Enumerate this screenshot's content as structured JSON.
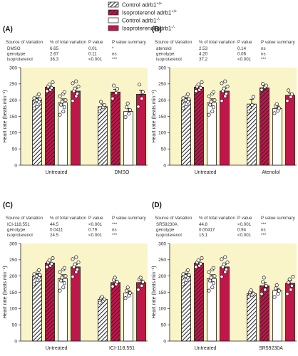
{
  "legend": {
    "items": [
      {
        "main": "Control adrb1",
        "sup": "+/+",
        "style": "hatch-white"
      },
      {
        "main": "Isoproterenol adrb1",
        "sup": "+/+",
        "style": "hatch-red"
      },
      {
        "main": "Control adrb1",
        "sup": "-/-",
        "style": "white"
      },
      {
        "main": "Isoproterenol adrb1",
        "sup": "-/-",
        "style": "red"
      }
    ]
  },
  "colors": {
    "plot_background": "#faf5c8",
    "red": "#c0174b",
    "dark_red": "#8e1035",
    "bar_outline": "#1a1a1a",
    "point_fill": "#ffffff"
  },
  "stats_headers": [
    "Source of Variation",
    "% of total variation",
    "P value",
    "P value summary"
  ],
  "chart_data": [
    {
      "panel_label": "(A)",
      "type": "bar",
      "categories": [
        "Untreated",
        "DMSO"
      ],
      "ylabel": "Heart rate (beats min⁻¹)",
      "ylim": [
        0,
        300
      ],
      "yticks": [
        0,
        50,
        100,
        150,
        200,
        250,
        300
      ],
      "stats": [
        [
          "DMSO",
          "6.65",
          "0.01",
          "*"
        ],
        [
          "genotype",
          "2.67",
          "0.11",
          "ns"
        ],
        [
          "isoproterenol",
          "36.3",
          "<0.001",
          "***"
        ]
      ],
      "series": [
        {
          "name": "Control adrb1+/+",
          "values": [
            200,
            180
          ],
          "sem": [
            6,
            8
          ],
          "points": [
            [
              175,
              188,
              195,
              198,
              200,
              203,
              206,
              212,
              218
            ],
            [
              165,
              178,
              185,
              195
            ]
          ]
        },
        {
          "name": "Isoproterenol adrb1+/+",
          "values": [
            240,
            225
          ],
          "sem": [
            7,
            8
          ],
          "points": [
            [
              228,
              232,
              238,
              242,
              248,
              255
            ],
            [
              205,
              222,
              235,
              245
            ]
          ]
        },
        {
          "name": "Control adrb1-/-",
          "values": [
            192,
            165
          ],
          "sem": [
            12,
            9
          ],
          "points": [
            [
              155,
              165,
              178,
              186,
              195,
              200,
              212,
              220,
              225
            ],
            [
              148,
              158,
              170,
              178,
              190
            ]
          ]
        },
        {
          "name": "Isoproterenol adrb1-/-",
          "values": [
            228,
            218
          ],
          "sem": [
            8,
            12
          ],
          "points": [
            [
              198,
              212,
              220,
              228,
              236,
              242,
              252,
              258
            ],
            [
              180,
              205,
              225,
              248
            ]
          ]
        }
      ]
    },
    {
      "panel_label": "(B)",
      "type": "bar",
      "categories": [
        "Untreated",
        "Atenolol"
      ],
      "ylabel": "Heart rate (beats min⁻¹)",
      "ylim": [
        0,
        300
      ],
      "yticks": [
        0,
        50,
        100,
        150,
        200,
        250,
        300
      ],
      "stats": [
        [
          "atenolol",
          "2.53",
          "0.14",
          "ns"
        ],
        [
          "genotype",
          "4.20",
          "0.06",
          "ns"
        ],
        [
          "isoproterenol",
          "37.2",
          "<0.001",
          "***"
        ]
      ],
      "series": [
        {
          "name": "Control adrb1+/+",
          "values": [
            200,
            188
          ],
          "sem": [
            6,
            15
          ],
          "points": [
            [
              175,
              188,
              195,
              198,
              200,
              203,
              206,
              212,
              218
            ],
            [
              165,
              185,
              210
            ]
          ]
        },
        {
          "name": "Isoproterenol adrb1+/+",
          "values": [
            240,
            238
          ],
          "sem": [
            7,
            6
          ],
          "points": [
            [
              228,
              232,
              238,
              242,
              248,
              255
            ],
            [
              232,
              240,
              245,
              250
            ]
          ]
        },
        {
          "name": "Control adrb1-/-",
          "values": [
            192,
            174
          ],
          "sem": [
            12,
            8
          ],
          "points": [
            [
              155,
              165,
              178,
              186,
              195,
              200,
              212,
              220,
              225
            ],
            [
              160,
              168,
              175,
              182,
              188
            ]
          ]
        },
        {
          "name": "Isoproterenol adrb1-/-",
          "values": [
            228,
            215
          ],
          "sem": [
            8,
            7
          ],
          "points": [
            [
              198,
              212,
              220,
              228,
              236,
              242,
              252,
              258
            ],
            [
              198,
              210,
              218,
              230
            ]
          ]
        }
      ]
    },
    {
      "panel_label": "(C)",
      "type": "bar",
      "categories": [
        "Untreated",
        "ICI-118,551"
      ],
      "ylabel": "Heart rate (beats min⁻¹)",
      "ylim": [
        0,
        300
      ],
      "yticks": [
        0,
        50,
        100,
        150,
        200,
        250,
        300
      ],
      "stats": [
        [
          "ICI-118,551",
          "44.5",
          "<0.001",
          "***"
        ],
        [
          "genotype",
          "0.0411",
          "0.79",
          "ns"
        ],
        [
          "isoproterenol",
          "24.5",
          "<0.001",
          "***"
        ]
      ],
      "series": [
        {
          "name": "Control adrb1+/+",
          "values": [
            200,
            128
          ],
          "sem": [
            6,
            4
          ],
          "points": [
            [
              175,
              188,
              195,
              198,
              200,
              203,
              206,
              212,
              218
            ],
            [
              118,
              124,
              128,
              132,
              136
            ]
          ]
        },
        {
          "name": "Isoproterenol adrb1+/+",
          "values": [
            240,
            180
          ],
          "sem": [
            7,
            7
          ],
          "points": [
            [
              228,
              232,
              238,
              242,
              248,
              255
            ],
            [
              168,
              175,
              182,
              188,
              195
            ]
          ]
        },
        {
          "name": "Control adrb1-/-",
          "values": [
            192,
            148
          ],
          "sem": [
            12,
            7
          ],
          "points": [
            [
              155,
              165,
              178,
              186,
              195,
              200,
              212,
              220,
              225
            ],
            [
              132,
              140,
              148,
              155,
              165
            ]
          ]
        },
        {
          "name": "Isoproterenol adrb1-/-",
          "values": [
            228,
            180
          ],
          "sem": [
            8,
            8
          ],
          "points": [
            [
              198,
              212,
              220,
              228,
              236,
              242,
              252,
              258
            ],
            [
              158,
              170,
              182,
              190,
              195
            ]
          ]
        }
      ]
    },
    {
      "panel_label": "(D)",
      "type": "bar",
      "categories": [
        "Untreated",
        "SR59230A"
      ],
      "ylabel": "Heart rate (beats min⁻¹)",
      "ylim": [
        0,
        300
      ],
      "yticks": [
        0,
        50,
        100,
        150,
        200,
        250,
        300
      ],
      "stats": [
        [
          "SR59230A",
          "44.8",
          "<0.001",
          "***"
        ],
        [
          "genotype",
          "0.00417",
          "0.94",
          "ns"
        ],
        [
          "isoproterenol",
          "15.1",
          "<0.001",
          "***"
        ]
      ],
      "series": [
        {
          "name": "Control adrb1+/+",
          "values": [
            200,
            146
          ],
          "sem": [
            6,
            5
          ],
          "points": [
            [
              175,
              188,
              195,
              198,
              200,
              203,
              206,
              212,
              218
            ],
            [
              136,
              142,
              146,
              150,
              156
            ]
          ]
        },
        {
          "name": "Isoproterenol adrb1+/+",
          "values": [
            240,
            170
          ],
          "sem": [
            7,
            10
          ],
          "points": [
            [
              228,
              232,
              238,
              242,
              248,
              255
            ],
            [
              145,
              158,
              170,
              182,
              195
            ]
          ]
        },
        {
          "name": "Control adrb1-/-",
          "values": [
            192,
            155
          ],
          "sem": [
            12,
            7
          ],
          "points": [
            [
              155,
              165,
              178,
              186,
              195,
              200,
              212,
              220,
              225
            ],
            [
              135,
              145,
              155,
              162,
              172
            ]
          ]
        },
        {
          "name": "Isoproterenol adrb1-/-",
          "values": [
            228,
            178
          ],
          "sem": [
            8,
            8
          ],
          "points": [
            [
              198,
              212,
              220,
              228,
              236,
              242,
              252,
              258
            ],
            [
              145,
              158,
              170,
              180,
              190,
              198
            ]
          ]
        }
      ]
    }
  ]
}
